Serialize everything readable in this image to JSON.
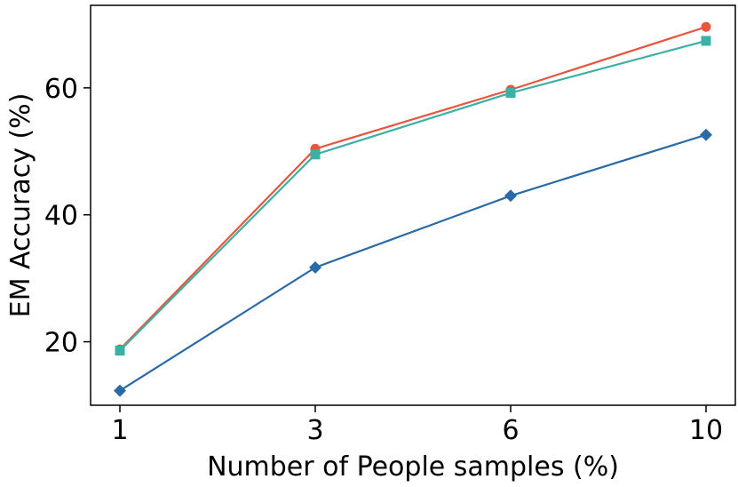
{
  "chart_data": {
    "type": "line",
    "title": "",
    "xlabel": "Number of People samples (%)",
    "ylabel": "EM Accuracy (%)",
    "x": [
      "1",
      "3",
      "6",
      "10"
    ],
    "xticks": [
      "1",
      "3",
      "6",
      "10"
    ],
    "yticks": [
      "20",
      "40",
      "60"
    ],
    "ytick_values": [
      20,
      40,
      60
    ],
    "ylim": [
      10,
      73
    ],
    "grid": false,
    "legend": "none",
    "series": [
      {
        "color": "#e8553d",
        "marker": "circle",
        "values": [
          18.8,
          50.4,
          59.7,
          69.6
        ]
      },
      {
        "color": "#3cb0a4",
        "marker": "square",
        "values": [
          18.6,
          49.5,
          59.2,
          67.4
        ]
      },
      {
        "color": "#2a6aa6",
        "marker": "diamond",
        "values": [
          12.3,
          31.7,
          43.0,
          52.6
        ]
      }
    ]
  }
}
